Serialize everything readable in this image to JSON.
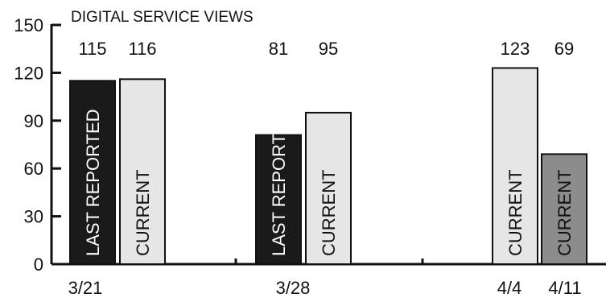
{
  "chart_data": {
    "type": "bar",
    "title": "DIGITAL SERVICE VIEWS",
    "xlabel": "",
    "ylabel": "",
    "ylim": [
      0,
      150
    ],
    "yticks": [
      0,
      30,
      60,
      90,
      120,
      150
    ],
    "grid": false,
    "bars": [
      {
        "x_label": "3/21",
        "value": 115,
        "label": "LAST REPORTED",
        "fill": "#1a1a1a",
        "text_color": "#ffffff"
      },
      {
        "x_label": "3/21",
        "value": 116,
        "label": "CURRENT",
        "fill": "#e6e6e6",
        "text_color": "#111111"
      },
      {
        "x_label": "3/28",
        "value": 81,
        "label": "LAST REPORTED",
        "fill": "#1a1a1a",
        "text_color": "#ffffff"
      },
      {
        "x_label": "3/28",
        "value": 95,
        "label": "CURRENT",
        "fill": "#e6e6e6",
        "text_color": "#111111"
      },
      {
        "x_label": "4/4",
        "value": 123,
        "label": "CURRENT",
        "fill": "#e6e6e6",
        "text_color": "#111111"
      },
      {
        "x_label": "4/11",
        "value": 69,
        "label": "CURRENT",
        "fill": "#8c8c8c",
        "text_color": "#111111"
      }
    ],
    "x_tick_labels": [
      "3/21",
      "3/28",
      "4/4",
      "4/11"
    ]
  }
}
